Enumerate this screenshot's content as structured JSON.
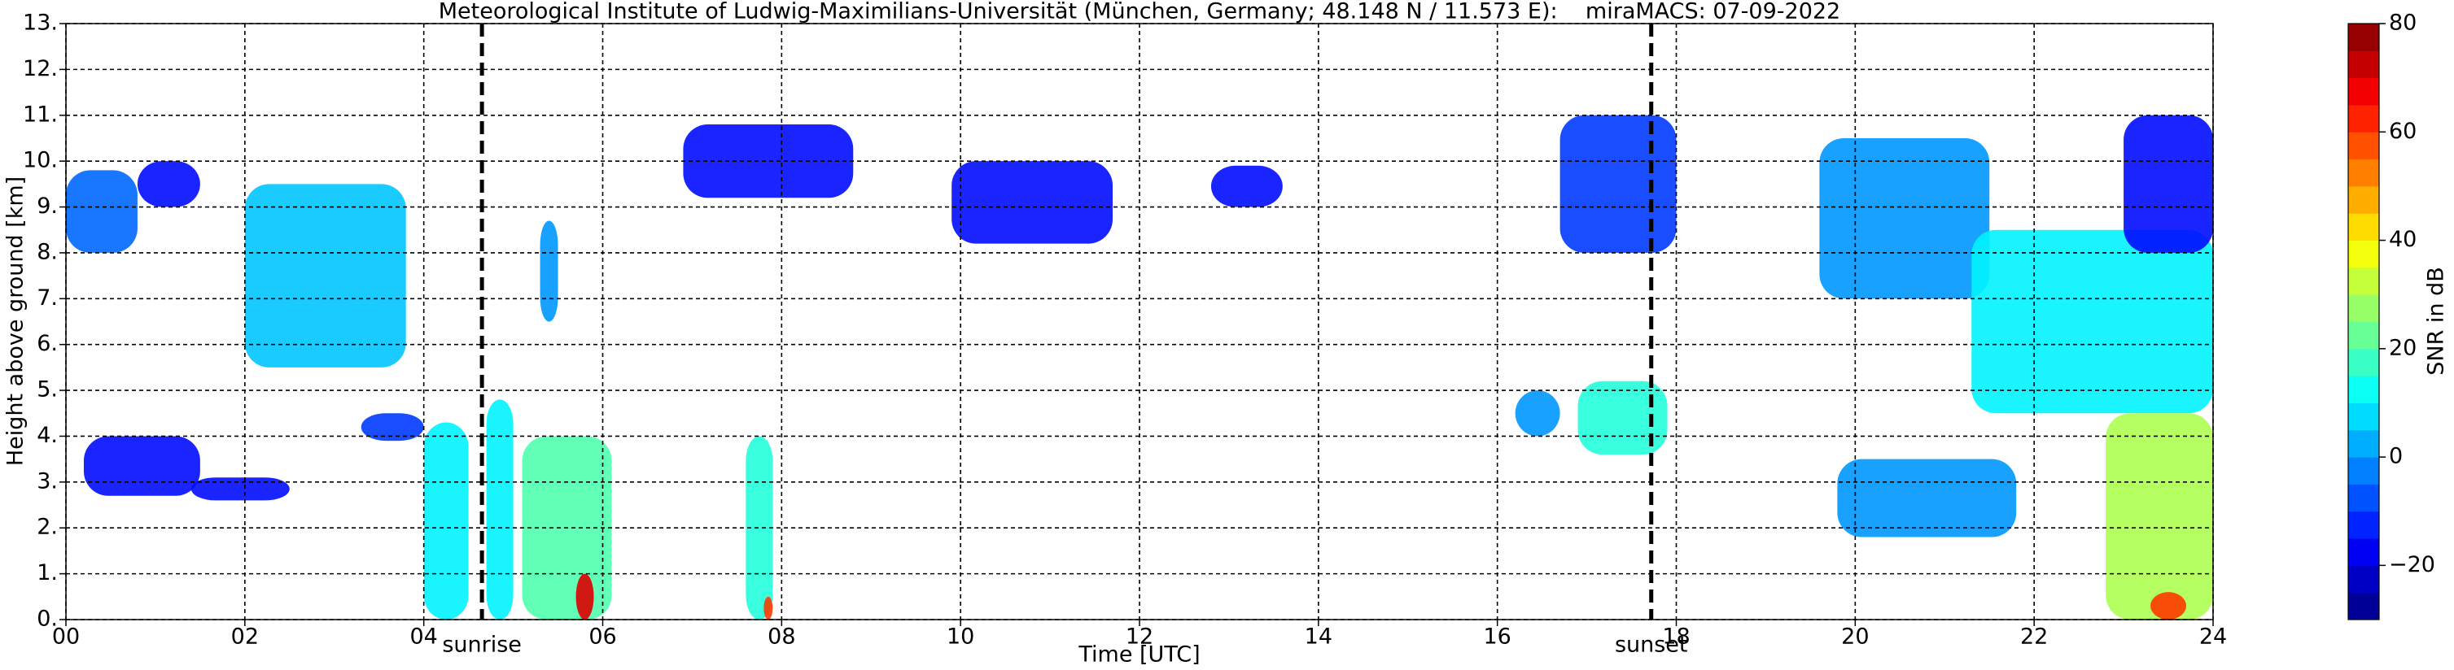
{
  "chart_data": {
    "type": "heatmap",
    "title": "Meteorological Institute of Ludwig-Maximilians-Universität (München, Germany; 48.148 N / 11.573 E):    miraMACS: 07-09-2022",
    "xlabel": "Time [UTC]",
    "ylabel": "Height above ground [km]",
    "colorbar_label": "SNR in dB",
    "xlim": [
      0,
      24
    ],
    "ylim": [
      0,
      13
    ],
    "xticks": [
      {
        "value": 0,
        "label": "00"
      },
      {
        "value": 2,
        "label": "02"
      },
      {
        "value": 4,
        "label": "04"
      },
      {
        "value": 6,
        "label": "06"
      },
      {
        "value": 8,
        "label": "08"
      },
      10,
      12,
      14,
      16,
      18,
      20,
      22,
      24
    ],
    "yticks": [
      {
        "value": 0,
        "label": "0."
      },
      {
        "value": 1,
        "label": "1."
      },
      {
        "value": 2,
        "label": "2."
      },
      {
        "value": 3,
        "label": "3."
      },
      {
        "value": 4,
        "label": "4."
      },
      {
        "value": 5,
        "label": "5."
      },
      {
        "value": 6,
        "label": "6."
      },
      {
        "value": 7,
        "label": "7."
      },
      {
        "value": 8,
        "label": "8."
      },
      {
        "value": 9,
        "label": "9."
      },
      {
        "value": 10,
        "label": "10."
      },
      {
        "value": 11,
        "label": "11."
      },
      {
        "value": 12,
        "label": "12."
      },
      {
        "value": 13,
        "label": "13."
      }
    ],
    "clim": [
      -30,
      80
    ],
    "cticks": [
      {
        "value": -20,
        "label": "−20"
      },
      0,
      20,
      40,
      60,
      80
    ],
    "grid": true,
    "colormap": "jet",
    "vlines": [
      {
        "x": 4.65,
        "label": "sunrise"
      },
      {
        "x": 17.72,
        "label": "sunset"
      }
    ],
    "echoes": [
      {
        "x": [
          0.0,
          0.8
        ],
        "y": [
          8.0,
          9.8
        ],
        "value": -5
      },
      {
        "x": [
          0.8,
          1.5
        ],
        "y": [
          9.0,
          10.0
        ],
        "value": -15
      },
      {
        "x": [
          2.0,
          3.8
        ],
        "y": [
          5.5,
          9.5
        ],
        "value": 5
      },
      {
        "x": [
          6.9,
          8.8
        ],
        "y": [
          9.2,
          10.8
        ],
        "value": -15
      },
      {
        "x": [
          9.9,
          11.7
        ],
        "y": [
          8.2,
          10.0
        ],
        "value": -15
      },
      {
        "x": [
          12.8,
          13.6
        ],
        "y": [
          9.0,
          9.9
        ],
        "value": -15
      },
      {
        "x": [
          16.7,
          18.0
        ],
        "y": [
          8.0,
          11.0
        ],
        "value": -10
      },
      {
        "x": [
          19.6,
          21.5
        ],
        "y": [
          7.0,
          10.5
        ],
        "value": 0
      },
      {
        "x": [
          21.3,
          24.0
        ],
        "y": [
          4.5,
          8.5
        ],
        "value": 10
      },
      {
        "x": [
          23.0,
          24.0
        ],
        "y": [
          8.0,
          11.0
        ],
        "value": -15
      },
      {
        "x": [
          0.2,
          1.5
        ],
        "y": [
          2.7,
          4.0
        ],
        "value": -15
      },
      {
        "x": [
          1.4,
          2.5
        ],
        "y": [
          2.6,
          3.1
        ],
        "value": -15
      },
      {
        "x": [
          3.3,
          4.0
        ],
        "y": [
          3.9,
          4.5
        ],
        "value": -10
      },
      {
        "x": [
          5.3,
          5.5
        ],
        "y": [
          6.5,
          8.7
        ],
        "value": 0
      },
      {
        "x": [
          4.0,
          4.5
        ],
        "y": [
          0.0,
          4.3
        ],
        "value": 10
      },
      {
        "x": [
          4.7,
          5.0
        ],
        "y": [
          0.0,
          4.8
        ],
        "value": 10
      },
      {
        "x": [
          5.1,
          6.1
        ],
        "y": [
          0.0,
          4.0
        ],
        "value": 20
      },
      {
        "x": [
          5.7,
          5.9
        ],
        "y": [
          0.0,
          1.0
        ],
        "value": 70
      },
      {
        "x": [
          7.6,
          7.9
        ],
        "y": [
          0.0,
          4.0
        ],
        "value": 15
      },
      {
        "x": [
          7.8,
          7.9
        ],
        "y": [
          0.0,
          0.5
        ],
        "value": 60
      },
      {
        "x": [
          16.2,
          16.7
        ],
        "y": [
          4.0,
          5.0
        ],
        "value": 0
      },
      {
        "x": [
          16.9,
          17.9
        ],
        "y": [
          3.6,
          5.2
        ],
        "value": 15
      },
      {
        "x": [
          19.8,
          21.8
        ],
        "y": [
          1.8,
          3.5
        ],
        "value": 0
      },
      {
        "x": [
          22.8,
          24.0
        ],
        "y": [
          0.0,
          4.5
        ],
        "value": 30
      },
      {
        "x": [
          23.3,
          23.7
        ],
        "y": [
          0.0,
          0.6
        ],
        "value": 60
      }
    ]
  }
}
